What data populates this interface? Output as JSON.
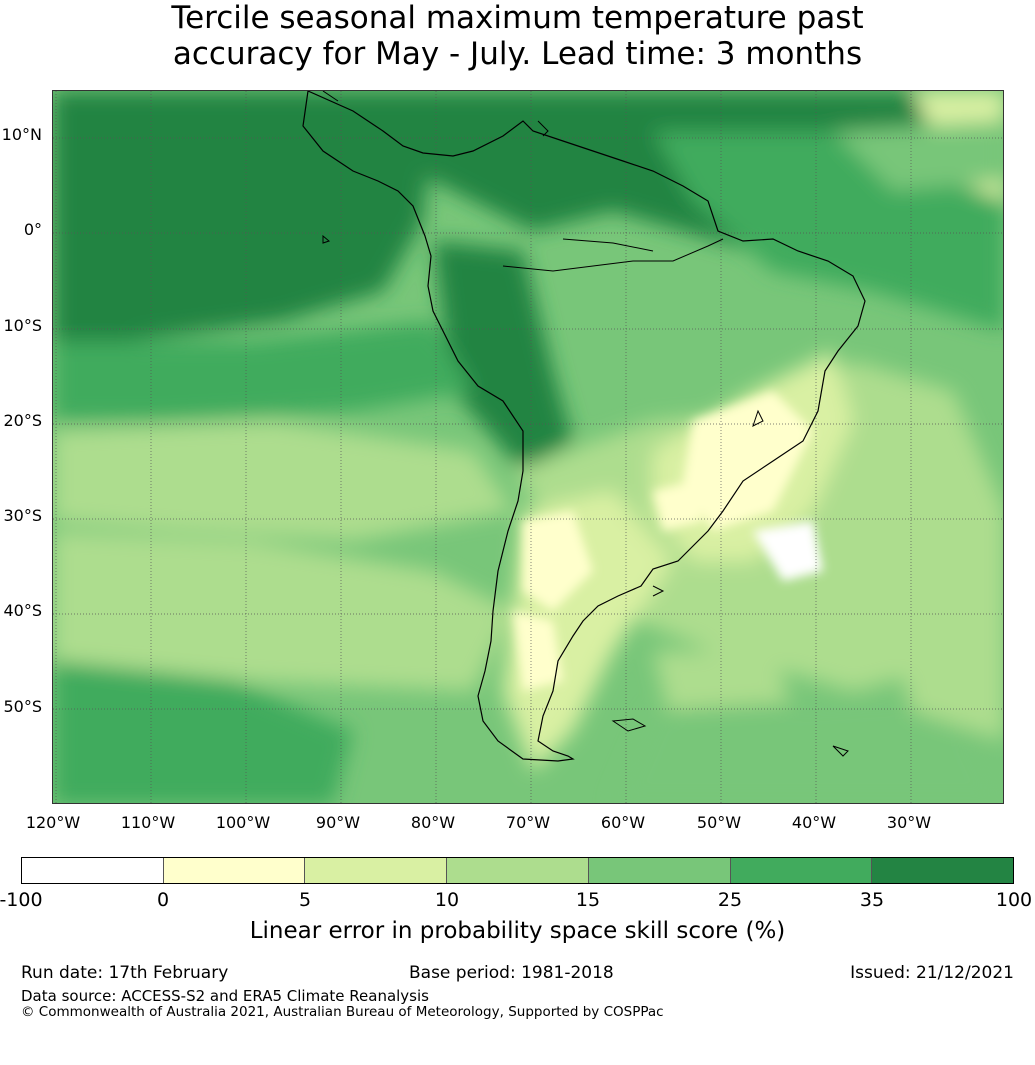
{
  "title": {
    "line1": "Tercile seasonal maximum temperature past",
    "line2": "accuracy for May - July. Lead time: 3 months"
  },
  "map": {
    "lat_labels": [
      "10°N",
      "0°",
      "10°S",
      "20°S",
      "30°S",
      "40°S",
      "50°S"
    ],
    "lon_labels": [
      "120°W",
      "110°W",
      "100°W",
      "90°W",
      "80°W",
      "70°W",
      "60°W",
      "50°W",
      "40°W",
      "30°W"
    ]
  },
  "colorbar": {
    "colors": [
      "#ffffff",
      "#ffffcc",
      "#d9f0a3",
      "#addd8e",
      "#78c679",
      "#41ab5d",
      "#238443"
    ],
    "ticks": [
      "-100",
      "0",
      "5",
      "10",
      "15",
      "25",
      "35",
      "100"
    ],
    "label": "Linear error in probability space skill score (%)"
  },
  "footer": {
    "run_date": "Run date: 17th February",
    "base_period": "Base period: 1981-2018",
    "issued": "Issued: 21/12/2021",
    "data_source": "Data source: ACCESS-S2 and ERA5 Climate Reanalysis",
    "copyright": "© Commonwealth of Australia 2021, Australian Bureau of Meteorology, Supported by COSPPac"
  }
}
